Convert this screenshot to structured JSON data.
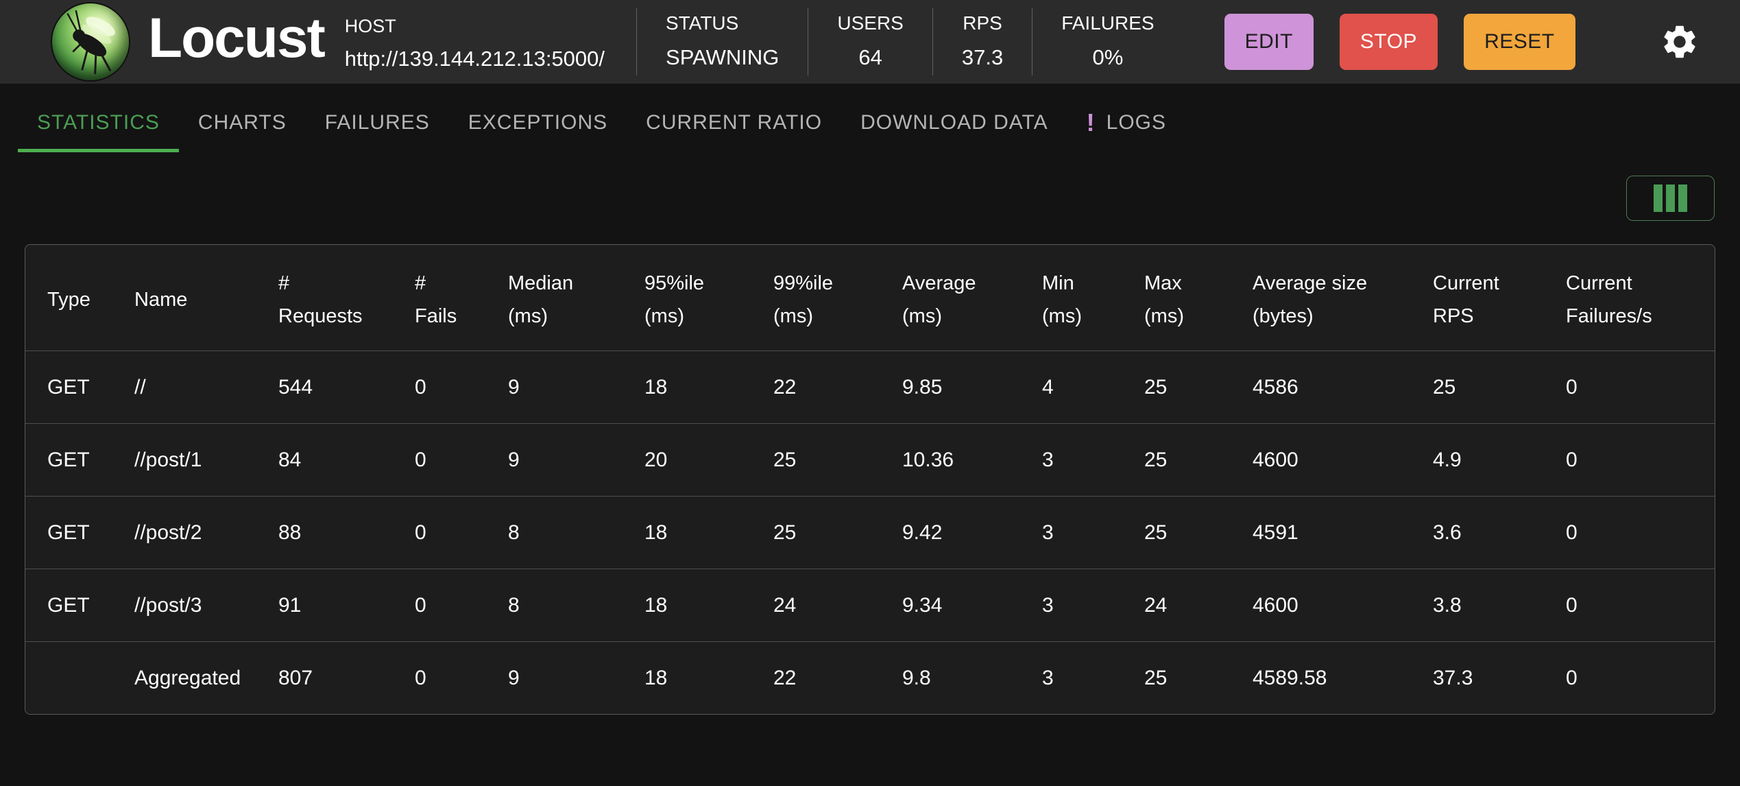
{
  "header": {
    "app_name": "Locust",
    "host": {
      "label": "HOST",
      "url": "http://139.144.212.13:5000/"
    },
    "stats": [
      {
        "key": "status",
        "label": "STATUS",
        "value": "SPAWNING"
      },
      {
        "key": "users",
        "label": "USERS",
        "value": "64"
      },
      {
        "key": "rps",
        "label": "RPS",
        "value": "37.3"
      },
      {
        "key": "failures",
        "label": "FAILURES",
        "value": "0%"
      }
    ],
    "buttons": [
      {
        "key": "edit",
        "label": "EDIT",
        "color": "#ce93d8"
      },
      {
        "key": "stop",
        "label": "STOP",
        "color": "#e0524b"
      },
      {
        "key": "reset",
        "label": "RESET",
        "color": "#f2a63c"
      }
    ],
    "settings_icon": "gear-icon"
  },
  "tabs": {
    "active": "STATISTICS",
    "active_color": "#4caf50",
    "badge_color": "#ce93d8",
    "items": [
      {
        "label": "STATISTICS"
      },
      {
        "label": "CHARTS"
      },
      {
        "label": "FAILURES"
      },
      {
        "label": "EXCEPTIONS"
      },
      {
        "label": "CURRENT RATIO"
      },
      {
        "label": "DOWNLOAD DATA"
      },
      {
        "label": "LOGS",
        "badge": "!"
      }
    ]
  },
  "toolbar": {
    "columns_icon": "columns-icon"
  },
  "table": {
    "columns": [
      {
        "key": "type",
        "line1": "Type",
        "line2": ""
      },
      {
        "key": "name",
        "line1": "Name",
        "line2": ""
      },
      {
        "key": "requests",
        "line1": "#",
        "line2": "Requests"
      },
      {
        "key": "fails",
        "line1": "#",
        "line2": "Fails"
      },
      {
        "key": "median",
        "line1": "Median",
        "line2": "(ms)"
      },
      {
        "key": "p95",
        "line1": "95%ile",
        "line2": "(ms)"
      },
      {
        "key": "p99",
        "line1": "99%ile",
        "line2": "(ms)"
      },
      {
        "key": "average",
        "line1": "Average",
        "line2": "(ms)"
      },
      {
        "key": "min",
        "line1": "Min",
        "line2": "(ms)"
      },
      {
        "key": "max",
        "line1": "Max",
        "line2": "(ms)"
      },
      {
        "key": "avg-size",
        "line1": "Average size",
        "line2": "(bytes)"
      },
      {
        "key": "current-rps",
        "line1": "Current",
        "line2": "RPS"
      },
      {
        "key": "current-fails",
        "line1": "Current",
        "line2": "Failures/s"
      }
    ],
    "rows": [
      [
        "GET",
        "//",
        "544",
        "0",
        "9",
        "18",
        "22",
        "9.85",
        "4",
        "25",
        "4586",
        "25",
        "0"
      ],
      [
        "GET",
        "//post/1",
        "84",
        "0",
        "9",
        "20",
        "25",
        "10.36",
        "3",
        "25",
        "4600",
        "4.9",
        "0"
      ],
      [
        "GET",
        "//post/2",
        "88",
        "0",
        "8",
        "18",
        "25",
        "9.42",
        "3",
        "25",
        "4591",
        "3.6",
        "0"
      ],
      [
        "GET",
        "//post/3",
        "91",
        "0",
        "8",
        "18",
        "24",
        "9.34",
        "3",
        "24",
        "4600",
        "3.8",
        "0"
      ]
    ],
    "aggregated": [
      "",
      "Aggregated",
      "807",
      "0",
      "9",
      "18",
      "22",
      "9.8",
      "3",
      "25",
      "4589.58",
      "37.3",
      "0"
    ]
  }
}
